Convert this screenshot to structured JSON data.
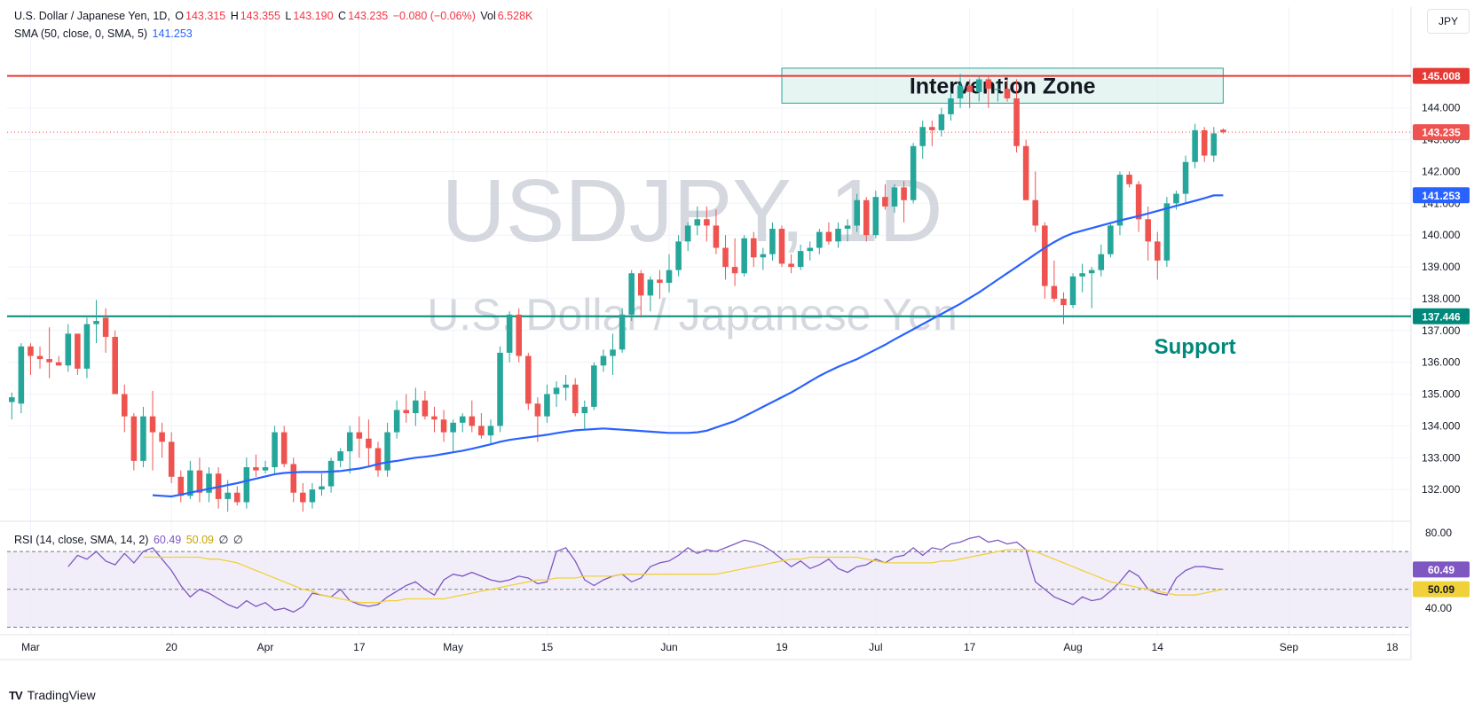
{
  "header": {
    "symbol_desc": "U.S. Dollar / Japanese Yen, 1D,",
    "o_label": "O",
    "o_value": "143.315",
    "h_label": "H",
    "h_value": "143.355",
    "l_label": "L",
    "l_value": "143.190",
    "c_label": "C",
    "c_value": "143.235",
    "change": "−0.080 (−0.06%)",
    "vol_label": "Vol",
    "vol_value": "6.528K",
    "sma_label": "SMA (50, close, 0, SMA, 5)",
    "sma_value": "141.253",
    "currency": "JPY"
  },
  "rsi_legend": {
    "label": "RSI (14, close, SMA, 14, 2)",
    "rsi_value": "60.49",
    "sma_value": "50.09",
    "extra1": "∅",
    "extra2": "∅"
  },
  "brand": {
    "name": "TradingView",
    "logo": "TV"
  },
  "watermark": {
    "line1": "USDJPY, 1D",
    "line2": "U.S. Dollar / Japanese Yen"
  },
  "colors": {
    "up": "#26a69a",
    "down": "#ef5350",
    "sma": "#2962ff",
    "rsi": "#7e57c2",
    "rsi_sma": "#f0d13a",
    "resistance": "#e53935",
    "support": "#00897b",
    "grid": "#f0f3fa",
    "rsi_band": "#ede7f6"
  },
  "chart_data": [
    {
      "type": "candlestick",
      "title": "USDJPY, 1D",
      "ylim": [
        131.0,
        146.0
      ],
      "price_ticks": [
        132.0,
        133.0,
        134.0,
        135.0,
        136.0,
        137.0,
        138.0,
        139.0,
        140.0,
        141.0,
        142.0,
        143.0,
        144.0
      ],
      "x_ticks": [
        {
          "idx": 2,
          "label": "Mar"
        },
        {
          "idx": 17,
          "label": "20"
        },
        {
          "idx": 27,
          "label": "Apr"
        },
        {
          "idx": 37,
          "label": "17"
        },
        {
          "idx": 47,
          "label": "May"
        },
        {
          "idx": 57,
          "label": "15"
        },
        {
          "idx": 70,
          "label": "Jun"
        },
        {
          "idx": 82,
          "label": "19"
        },
        {
          "idx": 92,
          "label": "Jul"
        },
        {
          "idx": 102,
          "label": "17"
        },
        {
          "idx": 113,
          "label": "Aug"
        },
        {
          "idx": 122,
          "label": "14"
        },
        {
          "idx": 136,
          "label": "Sep"
        },
        {
          "idx": 147,
          "label": "18"
        }
      ],
      "x_range": [
        -0.5,
        149
      ],
      "candles": [
        [
          134.75,
          135.05,
          134.2,
          134.9
        ],
        [
          134.7,
          136.6,
          134.4,
          136.5
        ],
        [
          136.5,
          136.6,
          135.6,
          136.2
        ],
        [
          136.2,
          136.5,
          135.8,
          136.1
        ],
        [
          136.1,
          137.1,
          135.5,
          136.0
        ],
        [
          136.0,
          136.2,
          135.9,
          135.9
        ],
        [
          135.9,
          137.2,
          135.7,
          136.9
        ],
        [
          136.9,
          136.9,
          135.6,
          135.8
        ],
        [
          135.8,
          137.4,
          135.5,
          137.2
        ],
        [
          137.2,
          137.96,
          136.6,
          137.3
        ],
        [
          137.4,
          137.7,
          136.3,
          136.8
        ],
        [
          136.8,
          137.0,
          135.0,
          135.0
        ],
        [
          135.0,
          135.3,
          133.8,
          134.3
        ],
        [
          134.3,
          134.4,
          132.6,
          132.9
        ],
        [
          132.9,
          134.6,
          132.7,
          134.3
        ],
        [
          134.3,
          135.1,
          132.6,
          133.8
        ],
        [
          133.8,
          134.1,
          133.0,
          133.5
        ],
        [
          133.5,
          133.8,
          132.2,
          132.4
        ],
        [
          132.4,
          132.6,
          131.6,
          131.8
        ],
        [
          131.8,
          132.9,
          131.7,
          132.6
        ],
        [
          132.6,
          133.0,
          131.6,
          131.9
        ],
        [
          131.9,
          132.7,
          131.6,
          132.5
        ],
        [
          132.5,
          132.7,
          131.4,
          131.7
        ],
        [
          131.7,
          132.3,
          131.3,
          131.9
        ],
        [
          131.9,
          132.1,
          131.5,
          131.6
        ],
        [
          131.6,
          133.0,
          131.4,
          132.7
        ],
        [
          132.7,
          133.1,
          132.4,
          132.6
        ],
        [
          132.6,
          132.9,
          132.5,
          132.7
        ],
        [
          132.7,
          134.0,
          132.5,
          133.8
        ],
        [
          133.8,
          134.0,
          132.7,
          132.8
        ],
        [
          132.8,
          133.0,
          131.6,
          131.9
        ],
        [
          131.9,
          132.2,
          131.3,
          131.6
        ],
        [
          131.6,
          132.2,
          131.4,
          132.0
        ],
        [
          132.0,
          132.5,
          131.8,
          132.1
        ],
        [
          132.1,
          133.0,
          131.9,
          132.9
        ],
        [
          132.9,
          133.3,
          132.7,
          133.2
        ],
        [
          133.2,
          134.0,
          132.5,
          133.8
        ],
        [
          133.8,
          134.3,
          133.0,
          133.6
        ],
        [
          133.6,
          134.2,
          132.7,
          133.3
        ],
        [
          133.3,
          133.5,
          132.4,
          132.6
        ],
        [
          132.6,
          134.1,
          132.4,
          133.8
        ],
        [
          133.8,
          134.8,
          133.6,
          134.5
        ],
        [
          134.5,
          135.0,
          134.1,
          134.4
        ],
        [
          134.4,
          135.2,
          134.0,
          134.8
        ],
        [
          134.8,
          135.1,
          134.2,
          134.3
        ],
        [
          134.3,
          134.6,
          133.8,
          134.2
        ],
        [
          134.2,
          134.5,
          133.5,
          133.8
        ],
        [
          133.8,
          134.2,
          133.2,
          134.1
        ],
        [
          134.1,
          134.4,
          133.8,
          134.3
        ],
        [
          134.3,
          134.8,
          133.8,
          134.0
        ],
        [
          134.0,
          134.4,
          133.6,
          133.7
        ],
        [
          133.7,
          134.2,
          133.4,
          134.0
        ],
        [
          134.0,
          136.5,
          133.8,
          136.3
        ],
        [
          136.3,
          137.6,
          136.0,
          137.5
        ],
        [
          137.5,
          137.7,
          136.0,
          136.2
        ],
        [
          136.2,
          136.3,
          134.5,
          134.7
        ],
        [
          134.7,
          134.9,
          133.5,
          134.3
        ],
        [
          134.3,
          135.3,
          134.1,
          135.0
        ],
        [
          135.0,
          135.4,
          134.6,
          135.2
        ],
        [
          135.2,
          135.6,
          134.8,
          135.3
        ],
        [
          135.3,
          135.5,
          134.3,
          134.4
        ],
        [
          134.4,
          134.8,
          133.9,
          134.6
        ],
        [
          134.6,
          136.0,
          134.5,
          135.9
        ],
        [
          135.9,
          136.4,
          135.7,
          136.2
        ],
        [
          136.2,
          136.9,
          135.6,
          136.4
        ],
        [
          136.4,
          137.7,
          136.3,
          137.5
        ],
        [
          137.5,
          138.9,
          137.3,
          138.8
        ],
        [
          138.8,
          138.9,
          137.4,
          138.1
        ],
        [
          138.1,
          138.7,
          137.6,
          138.6
        ],
        [
          138.6,
          138.9,
          138.0,
          138.5
        ],
        [
          138.5,
          139.4,
          138.2,
          138.9
        ],
        [
          138.9,
          140.0,
          138.7,
          139.8
        ],
        [
          139.8,
          140.4,
          139.5,
          140.3
        ],
        [
          140.3,
          140.9,
          140.0,
          140.5
        ],
        [
          140.5,
          140.9,
          139.8,
          140.3
        ],
        [
          140.3,
          140.8,
          139.4,
          139.6
        ],
        [
          139.6,
          140.0,
          138.6,
          139.0
        ],
        [
          139.0,
          139.9,
          138.4,
          138.8
        ],
        [
          138.8,
          140.0,
          138.7,
          139.9
        ],
        [
          139.9,
          140.1,
          139.0,
          139.3
        ],
        [
          139.3,
          139.6,
          138.9,
          139.4
        ],
        [
          139.4,
          140.4,
          139.2,
          140.2
        ],
        [
          140.2,
          140.3,
          139.0,
          139.1
        ],
        [
          139.1,
          139.4,
          138.8,
          139.0
        ],
        [
          139.0,
          139.7,
          138.9,
          139.5
        ],
        [
          139.5,
          139.8,
          139.2,
          139.6
        ],
        [
          139.6,
          140.2,
          139.4,
          140.1
        ],
        [
          140.1,
          140.4,
          139.7,
          139.8
        ],
        [
          139.8,
          140.4,
          139.6,
          140.2
        ],
        [
          140.2,
          140.5,
          139.8,
          140.3
        ],
        [
          140.3,
          141.3,
          140.1,
          141.1
        ],
        [
          141.1,
          141.2,
          139.8,
          140.0
        ],
        [
          140.0,
          141.4,
          139.9,
          141.2
        ],
        [
          141.2,
          141.6,
          140.8,
          140.9
        ],
        [
          140.9,
          141.6,
          140.7,
          141.5
        ],
        [
          141.5,
          141.7,
          140.4,
          141.1
        ],
        [
          141.1,
          142.9,
          141.0,
          142.8
        ],
        [
          142.8,
          143.6,
          142.4,
          143.4
        ],
        [
          143.4,
          143.6,
          142.8,
          143.3
        ],
        [
          143.3,
          144.0,
          143.1,
          143.8
        ],
        [
          143.8,
          144.5,
          143.6,
          144.3
        ],
        [
          144.3,
          145.07,
          144.0,
          144.7
        ],
        [
          144.7,
          144.9,
          144.0,
          144.5
        ],
        [
          144.5,
          145.0,
          144.2,
          144.9
        ],
        [
          144.9,
          145.0,
          144.0,
          144.6
        ],
        [
          144.6,
          144.8,
          144.2,
          144.6
        ],
        [
          144.6,
          144.9,
          144.2,
          144.3
        ],
        [
          144.3,
          144.9,
          142.6,
          142.8
        ],
        [
          142.8,
          143.0,
          141.1,
          141.1
        ],
        [
          141.1,
          142.0,
          140.1,
          140.3
        ],
        [
          140.3,
          140.4,
          138.0,
          138.4
        ],
        [
          138.4,
          139.2,
          137.9,
          138.0
        ],
        [
          138.0,
          138.2,
          137.2,
          137.8
        ],
        [
          137.8,
          138.8,
          137.7,
          138.7
        ],
        [
          138.7,
          139.1,
          138.2,
          138.8
        ],
        [
          138.8,
          139.0,
          137.7,
          138.9
        ],
        [
          138.9,
          139.7,
          138.7,
          139.4
        ],
        [
          139.4,
          140.4,
          139.3,
          140.3
        ],
        [
          140.3,
          142.0,
          140.0,
          141.9
        ],
        [
          141.9,
          142.0,
          141.5,
          141.6
        ],
        [
          141.6,
          141.7,
          140.1,
          140.5
        ],
        [
          140.5,
          140.9,
          139.2,
          139.8
        ],
        [
          139.8,
          140.1,
          138.6,
          139.2
        ],
        [
          139.2,
          141.2,
          139.0,
          141.0
        ],
        [
          141.0,
          141.4,
          140.8,
          141.3
        ],
        [
          141.3,
          142.5,
          141.0,
          142.3
        ],
        [
          142.3,
          143.5,
          142.1,
          143.3
        ],
        [
          143.3,
          143.4,
          142.3,
          142.5
        ],
        [
          142.5,
          143.4,
          142.3,
          143.2
        ],
        [
          143.315,
          143.355,
          143.19,
          143.235
        ]
      ],
      "sma": [
        131.82,
        131.8,
        131.78,
        131.84,
        131.9,
        131.96,
        132.02,
        132.08,
        132.14,
        132.2,
        132.27,
        132.34,
        132.41,
        132.48,
        132.52,
        132.54,
        132.55,
        132.55,
        132.55,
        132.56,
        132.58,
        132.62,
        132.66,
        132.72,
        132.8,
        132.86,
        132.9,
        132.95,
        133.0,
        133.03,
        133.07,
        133.12,
        133.17,
        133.22,
        133.28,
        133.35,
        133.42,
        133.5,
        133.56,
        133.6,
        133.64,
        133.68,
        133.72,
        133.77,
        133.82,
        133.86,
        133.88,
        133.9,
        133.92,
        133.9,
        133.88,
        133.86,
        133.84,
        133.82,
        133.8,
        133.78,
        133.78,
        133.78,
        133.8,
        133.85,
        133.95,
        134.05,
        134.15,
        134.3,
        134.45,
        134.6,
        134.75,
        134.9,
        135.05,
        135.22,
        135.4,
        135.57,
        135.72,
        135.86,
        135.98,
        136.1,
        136.25,
        136.4,
        136.55,
        136.72,
        136.88,
        137.04,
        137.2,
        137.36,
        137.52,
        137.68,
        137.84,
        138.02,
        138.2,
        138.4,
        138.6,
        138.8,
        139.0,
        139.2,
        139.4,
        139.6,
        139.78,
        139.94,
        140.06,
        140.14,
        140.22,
        140.3,
        140.38,
        140.46,
        140.53,
        140.6,
        140.68,
        140.76,
        140.84,
        140.92,
        141.0,
        141.08,
        141.16,
        141.25,
        141.253
      ],
      "levels": [
        {
          "name": "Resistance",
          "value": 145.008,
          "label": "145.008"
        },
        {
          "name": "Support",
          "value": 137.446,
          "label": "137.446",
          "text": "Support"
        },
        {
          "name": "Last",
          "value": 143.235,
          "label": "143.235"
        },
        {
          "name": "SMA",
          "value": 141.253,
          "label": "141.253"
        }
      ],
      "zone": {
        "text": "Intervention Zone",
        "from_idx": 82,
        "to_idx": 129,
        "y_low": 144.15,
        "y_high": 145.25
      }
    },
    {
      "type": "line",
      "title": "RSI (14, close, SMA, 14, 2)",
      "ylim": [
        26,
        86
      ],
      "ticks": [
        80.0,
        40.0
      ],
      "band": [
        30,
        70
      ],
      "midline": 50,
      "rsi": [
        62,
        68,
        66,
        70,
        65,
        63,
        69,
        64,
        70,
        72,
        66,
        60,
        52,
        46,
        50,
        48,
        45,
        42,
        40,
        44,
        41,
        43,
        39,
        40,
        38,
        41,
        48,
        47,
        46,
        50,
        44,
        42,
        41,
        42,
        46,
        49,
        52,
        54,
        50,
        47,
        55,
        58,
        57,
        59,
        57,
        55,
        54,
        55,
        57,
        56,
        53,
        54,
        70,
        72,
        65,
        55,
        52,
        55,
        57,
        58,
        54,
        56,
        62,
        64,
        65,
        68,
        72,
        69,
        71,
        70,
        72,
        74,
        76,
        75,
        73,
        70,
        66,
        62,
        65,
        61,
        63,
        66,
        61,
        59,
        62,
        63,
        66,
        64,
        67,
        68,
        72,
        68,
        72,
        71,
        74,
        75,
        77,
        78,
        75,
        76,
        74,
        75,
        71,
        54,
        50,
        46,
        44,
        42,
        46,
        44,
        45,
        49,
        54,
        60,
        57,
        50,
        48,
        47,
        56,
        60,
        62,
        62,
        61,
        60.49
      ],
      "rsi_sma": [
        67,
        67,
        67,
        67,
        67,
        67,
        67,
        66,
        66,
        65,
        64,
        62,
        60,
        58,
        56,
        54,
        52,
        50,
        49,
        47,
        46,
        45,
        44,
        43,
        43,
        43,
        44,
        44,
        45,
        45,
        45,
        45,
        45,
        46,
        47,
        48,
        49,
        50,
        51,
        52,
        53,
        54,
        55,
        55,
        56,
        56,
        56,
        57,
        57,
        57,
        57,
        58,
        58,
        58,
        58,
        58,
        58,
        58,
        58,
        58,
        58,
        58,
        59,
        60,
        61,
        62,
        63,
        64,
        65,
        66,
        66,
        67,
        67,
        67,
        67,
        67,
        67,
        66,
        65,
        64,
        64,
        64,
        64,
        64,
        64,
        65,
        65,
        66,
        67,
        68,
        69,
        70,
        71,
        71,
        71,
        70,
        68,
        66,
        64,
        62,
        60,
        58,
        56,
        54,
        53,
        52,
        51,
        50,
        49,
        48,
        47,
        47,
        47,
        48,
        49,
        50.09
      ]
    }
  ]
}
